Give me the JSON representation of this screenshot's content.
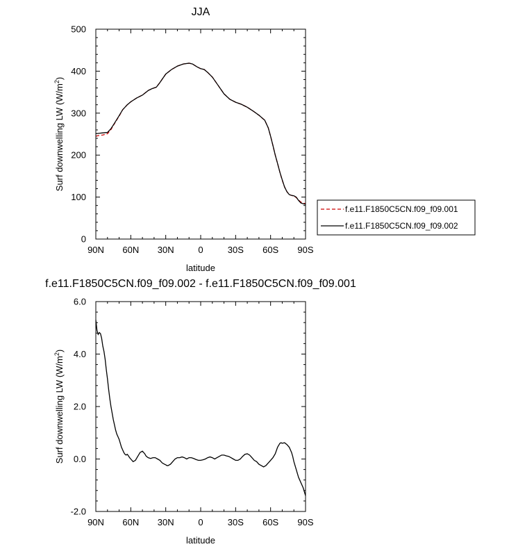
{
  "chart_data": [
    {
      "type": "line",
      "title": "JJA",
      "xlabel": "latitude",
      "ylabel": "Surf downwelling LW (W/m",
      "ylabel_sup": "2",
      "ylabel_close": ")",
      "xlim": [
        90,
        -90
      ],
      "ylim": [
        0,
        500
      ],
      "xticks": [
        {
          "v": 90,
          "label": "90N"
        },
        {
          "v": 60,
          "label": "60N"
        },
        {
          "v": 30,
          "label": "30N"
        },
        {
          "v": 0,
          "label": "0"
        },
        {
          "v": -30,
          "label": "30S"
        },
        {
          "v": -60,
          "label": "60S"
        },
        {
          "v": -90,
          "label": "90S"
        }
      ],
      "yticks": [
        {
          "v": 0,
          "label": "0"
        },
        {
          "v": 100,
          "label": "100"
        },
        {
          "v": 200,
          "label": "200"
        },
        {
          "v": 300,
          "label": "300"
        },
        {
          "v": 400,
          "label": "400"
        },
        {
          "v": 500,
          "label": "500"
        }
      ],
      "legend_position": "right",
      "series": [
        {
          "name": "f.e11.F1850C5CN.f09_f09.001",
          "color": "#cc0000",
          "dash": "dashed",
          "x": [
            90,
            87,
            84,
            80,
            77,
            74,
            70,
            67,
            63,
            60,
            55,
            50,
            45,
            42,
            38,
            35,
            30,
            25,
            20,
            15,
            10,
            7,
            3,
            0,
            -3,
            -6,
            -10,
            -15,
            -20,
            -25,
            -30,
            -35,
            -40,
            -45,
            -50,
            -55,
            -58,
            -60,
            -62,
            -64,
            -66,
            -68,
            -70,
            -72,
            -74,
            -76,
            -78,
            -80,
            -82,
            -84,
            -86,
            -88,
            -90
          ],
          "y": [
            245,
            247,
            248,
            251,
            261,
            275,
            293,
            308,
            320,
            327,
            336,
            343,
            354,
            358,
            362,
            373,
            393,
            404,
            412,
            417,
            419,
            417,
            410,
            406,
            404,
            397,
            386,
            366,
            346,
            333,
            326,
            321,
            314,
            305,
            295,
            283,
            265,
            245,
            223,
            200,
            180,
            159,
            140,
            124,
            113,
            106,
            104,
            102,
            99,
            93,
            88,
            86,
            84
          ]
        },
        {
          "name": "f.e11.F1850C5CN.f09_f09.002",
          "color": "#000000",
          "dash": "solid",
          "x": [
            90,
            87,
            84,
            80,
            77,
            74,
            70,
            67,
            63,
            60,
            55,
            50,
            45,
            42,
            38,
            35,
            30,
            25,
            20,
            15,
            10,
            7,
            3,
            0,
            -3,
            -6,
            -10,
            -15,
            -20,
            -25,
            -30,
            -35,
            -40,
            -45,
            -50,
            -55,
            -58,
            -60,
            -62,
            -64,
            -66,
            -68,
            -70,
            -72,
            -74,
            -76,
            -78,
            -80,
            -82,
            -84,
            -86,
            -88,
            -90
          ],
          "y": [
            251,
            252,
            253,
            254,
            263,
            276,
            294,
            308,
            320,
            327,
            336,
            343,
            354,
            358,
            362,
            373,
            393,
            404,
            412,
            417,
            419,
            417,
            410,
            406,
            404,
            397,
            386,
            366,
            346,
            333,
            326,
            321,
            314,
            305,
            295,
            283,
            265,
            245,
            223,
            200,
            180,
            159,
            141,
            124,
            113,
            106,
            104,
            103,
            100,
            92,
            86,
            84,
            83
          ]
        }
      ]
    },
    {
      "type": "line",
      "title": "f.e11.F1850C5CN.f09_f09.002 - f.e11.F1850C5CN.f09_f09.001",
      "xlabel": "latitude",
      "ylabel": "Surf downwelling LW (W/m",
      "ylabel_sup": "2",
      "ylabel_close": ")",
      "xlim": [
        90,
        -90
      ],
      "ylim": [
        -2.0,
        6.0
      ],
      "xticks": [
        {
          "v": 90,
          "label": "90N"
        },
        {
          "v": 60,
          "label": "60N"
        },
        {
          "v": 30,
          "label": "30N"
        },
        {
          "v": 0,
          "label": "0"
        },
        {
          "v": -30,
          "label": "30S"
        },
        {
          "v": -60,
          "label": "60S"
        },
        {
          "v": -90,
          "label": "90S"
        }
      ],
      "yticks": [
        {
          "v": -2.0,
          "label": "-2.0"
        },
        {
          "v": 0.0,
          "label": "0.0"
        },
        {
          "v": 2.0,
          "label": "2.0"
        },
        {
          "v": 4.0,
          "label": "4.0"
        },
        {
          "v": 6.0,
          "label": "6.0"
        }
      ],
      "series": [
        {
          "color": "#000000",
          "dash": "solid",
          "x": [
            90,
            89,
            88,
            87,
            86,
            85,
            84,
            83,
            82,
            81,
            80,
            79,
            78,
            77,
            76,
            75,
            74,
            73,
            72,
            71,
            70,
            69,
            68,
            67,
            66,
            65,
            64,
            63,
            62,
            61,
            60,
            58,
            56,
            54,
            52,
            50,
            48,
            47,
            46,
            45,
            43,
            41,
            39,
            37,
            35,
            33,
            31,
            30,
            29,
            28,
            26,
            24,
            22,
            20,
            18,
            16,
            14,
            12,
            10,
            8,
            6,
            4,
            2,
            0,
            -2,
            -4,
            -6,
            -8,
            -10,
            -12,
            -14,
            -16,
            -18,
            -20,
            -22,
            -24,
            -26,
            -28,
            -30,
            -32,
            -34,
            -36,
            -38,
            -40,
            -42,
            -44,
            -46,
            -48,
            -50,
            -52,
            -54,
            -56,
            -58,
            -60,
            -62,
            -64,
            -66,
            -68,
            -69,
            -70,
            -72,
            -74,
            -76,
            -77,
            -78,
            -79,
            -80,
            -81,
            -82,
            -83,
            -84,
            -85,
            -86,
            -87,
            -88,
            -89,
            -90
          ],
          "y": [
            5.3,
            4.9,
            4.75,
            4.82,
            4.78,
            4.6,
            4.3,
            4.1,
            3.8,
            3.4,
            3.05,
            2.65,
            2.3,
            2.0,
            1.75,
            1.5,
            1.3,
            1.1,
            0.95,
            0.85,
            0.75,
            0.6,
            0.45,
            0.35,
            0.25,
            0.18,
            0.15,
            0.18,
            0.12,
            0.05,
            0.0,
            -0.1,
            -0.05,
            0.1,
            0.25,
            0.3,
            0.2,
            0.12,
            0.08,
            0.05,
            0.02,
            0.05,
            0.05,
            0.0,
            -0.05,
            -0.15,
            -0.2,
            -0.22,
            -0.25,
            -0.25,
            -0.2,
            -0.1,
            0.0,
            0.05,
            0.05,
            0.08,
            0.05,
            0.0,
            0.05,
            0.05,
            0.02,
            -0.02,
            -0.05,
            -0.05,
            -0.03,
            0.0,
            0.05,
            0.08,
            0.05,
            0.0,
            0.05,
            0.1,
            0.15,
            0.15,
            0.12,
            0.1,
            0.05,
            0.0,
            -0.05,
            -0.05,
            0.0,
            0.1,
            0.18,
            0.2,
            0.15,
            0.05,
            -0.05,
            -0.1,
            -0.2,
            -0.25,
            -0.3,
            -0.25,
            -0.15,
            -0.05,
            0.05,
            0.2,
            0.45,
            0.6,
            0.62,
            0.6,
            0.62,
            0.55,
            0.45,
            0.35,
            0.25,
            0.1,
            -0.1,
            -0.25,
            -0.4,
            -0.55,
            -0.7,
            -0.8,
            -0.9,
            -1.0,
            -1.1,
            -1.25,
            -1.4
          ]
        }
      ]
    }
  ]
}
